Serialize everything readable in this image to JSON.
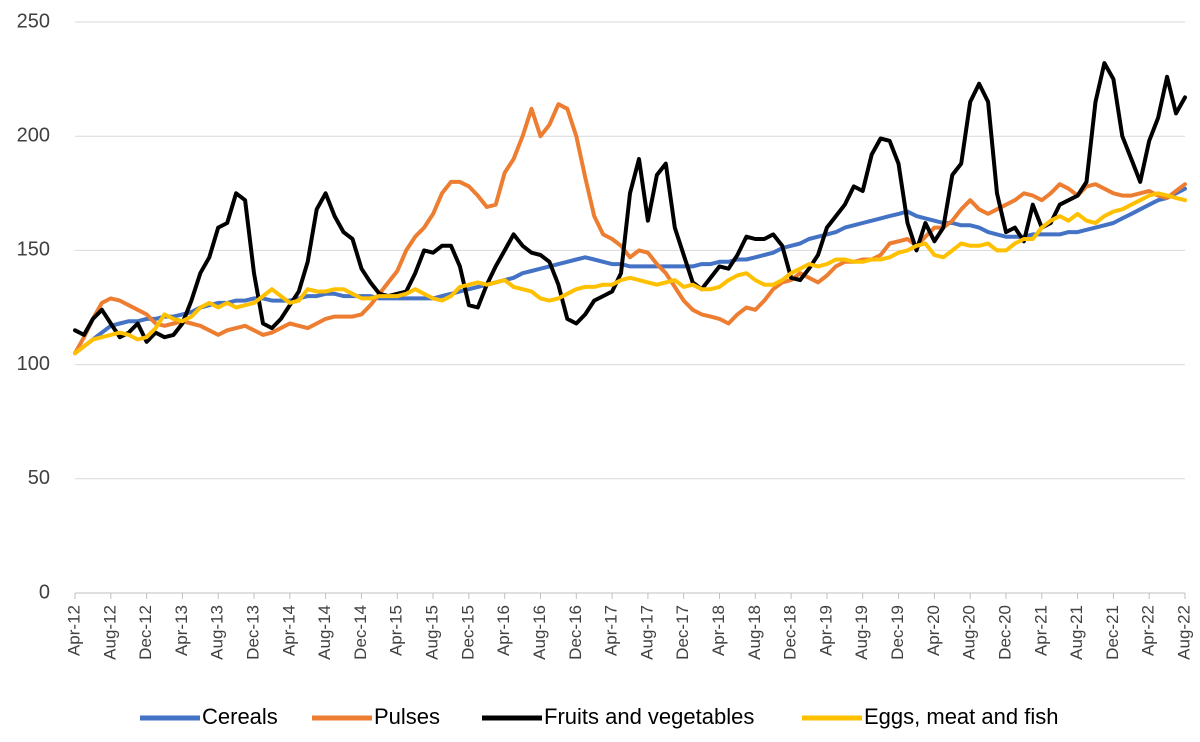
{
  "chart_data": {
    "type": "line",
    "categories": [
      "Apr-12",
      null,
      null,
      null,
      "Aug-12",
      null,
      null,
      null,
      "Dec-12",
      null,
      null,
      null,
      "Apr-13",
      null,
      null,
      null,
      "Aug-13",
      null,
      null,
      null,
      "Dec-13",
      null,
      null,
      null,
      "Apr-14",
      null,
      null,
      null,
      "Aug-14",
      null,
      null,
      null,
      "Dec-14",
      null,
      null,
      null,
      "Apr-15",
      null,
      null,
      null,
      "Aug-15",
      null,
      null,
      null,
      "Dec-15",
      null,
      null,
      null,
      "Apr-16",
      null,
      null,
      null,
      "Aug-16",
      null,
      null,
      null,
      "Dec-16",
      null,
      null,
      null,
      "Apr-17",
      null,
      null,
      null,
      "Aug-17",
      null,
      null,
      null,
      "Dec-17",
      null,
      null,
      null,
      "Apr-18",
      null,
      null,
      null,
      "Aug-18",
      null,
      null,
      null,
      "Dec-18",
      null,
      null,
      null,
      "Apr-19",
      null,
      null,
      null,
      "Aug-19",
      null,
      null,
      null,
      "Dec-19",
      null,
      null,
      null,
      "Apr-20",
      null,
      null,
      null,
      "Aug-20",
      null,
      null,
      null,
      "Dec-20",
      null,
      null,
      null,
      "Apr-21",
      null,
      null,
      null,
      "Aug-21",
      null,
      null,
      null,
      "Dec-21",
      null,
      null,
      null,
      "Apr-22",
      null,
      null,
      null,
      "Aug-22"
    ],
    "series": [
      {
        "name": "Cereals",
        "color": "#4472c4",
        "values": [
          105,
          108,
          111,
          114,
          117,
          118,
          119,
          119,
          120,
          120,
          121,
          121,
          122,
          123,
          125,
          126,
          127,
          127,
          128,
          128,
          129,
          129,
          128,
          128,
          128,
          129,
          130,
          130,
          131,
          131,
          130,
          130,
          130,
          130,
          129,
          129,
          129,
          129,
          129,
          129,
          129,
          130,
          131,
          132,
          133,
          134,
          135,
          136,
          137,
          138,
          140,
          141,
          142,
          143,
          144,
          145,
          146,
          147,
          146,
          145,
          144,
          144,
          143,
          143,
          143,
          143,
          143,
          143,
          143,
          143,
          144,
          144,
          145,
          145,
          146,
          146,
          147,
          148,
          149,
          151,
          152,
          153,
          155,
          156,
          157,
          158,
          160,
          161,
          162,
          163,
          164,
          165,
          166,
          167,
          165,
          164,
          163,
          162,
          162,
          161,
          161,
          160,
          158,
          157,
          156,
          156,
          156,
          157,
          157,
          157,
          157,
          158,
          158,
          159,
          160,
          161,
          162,
          164,
          166,
          168,
          170,
          172,
          173,
          175,
          177
        ]
      },
      {
        "name": "Pulses",
        "color": "#ed7d31",
        "values": [
          105,
          112,
          120,
          127,
          129,
          128,
          126,
          124,
          122,
          118,
          117,
          118,
          119,
          118,
          117,
          115,
          113,
          115,
          116,
          117,
          115,
          113,
          114,
          116,
          118,
          117,
          116,
          118,
          120,
          121,
          121,
          121,
          122,
          126,
          131,
          136,
          141,
          150,
          156,
          160,
          166,
          175,
          180,
          180,
          178,
          174,
          169,
          170,
          184,
          190,
          200,
          212,
          200,
          205,
          214,
          212,
          200,
          182,
          165,
          157,
          155,
          152,
          147,
          150,
          149,
          144,
          140,
          134,
          128,
          124,
          122,
          121,
          120,
          118,
          122,
          125,
          124,
          128,
          133,
          136,
          137,
          140,
          138,
          136,
          139,
          143,
          145,
          145,
          146,
          146,
          148,
          153,
          154,
          155,
          152,
          156,
          160,
          160,
          163,
          168,
          172,
          168,
          166,
          168,
          170,
          172,
          175,
          174,
          172,
          175,
          179,
          177,
          174,
          178,
          179,
          177,
          175,
          174,
          174,
          175,
          176,
          174,
          173,
          176,
          179
        ]
      },
      {
        "name": "Fruits and vegetables",
        "color": "#000000",
        "values": [
          115,
          113,
          120,
          124,
          118,
          112,
          114,
          118,
          110,
          114,
          112,
          113,
          118,
          128,
          140,
          147,
          160,
          162,
          175,
          172,
          140,
          118,
          116,
          120,
          126,
          132,
          145,
          168,
          175,
          165,
          158,
          155,
          142,
          136,
          131,
          130,
          131,
          132,
          140,
          150,
          149,
          152,
          152,
          143,
          126,
          125,
          135,
          143,
          150,
          157,
          152,
          149,
          148,
          145,
          135,
          120,
          118,
          122,
          128,
          130,
          132,
          140,
          175,
          190,
          163,
          183,
          188,
          160,
          148,
          136,
          133,
          138,
          143,
          142,
          148,
          156,
          155,
          155,
          157,
          152,
          138,
          137,
          142,
          148,
          160,
          165,
          170,
          178,
          176,
          192,
          199,
          198,
          188,
          162,
          150,
          162,
          154,
          160,
          183,
          188,
          215,
          223,
          215,
          175,
          158,
          160,
          154,
          170,
          160,
          162,
          170,
          172,
          174,
          180,
          215,
          232,
          225,
          200,
          190,
          180,
          198,
          208,
          226,
          210,
          217
        ]
      },
      {
        "name": "Eggs, meat and fish",
        "color": "#ffc000",
        "values": [
          105,
          108,
          111,
          112,
          113,
          114,
          113,
          111,
          112,
          116,
          122,
          120,
          119,
          121,
          125,
          127,
          125,
          127,
          125,
          126,
          127,
          130,
          133,
          130,
          127,
          128,
          133,
          132,
          132,
          133,
          133,
          131,
          129,
          129,
          130,
          130,
          130,
          131,
          133,
          131,
          129,
          128,
          130,
          134,
          135,
          136,
          135,
          136,
          137,
          134,
          133,
          132,
          129,
          128,
          129,
          131,
          133,
          134,
          134,
          135,
          135,
          137,
          138,
          137,
          136,
          135,
          136,
          137,
          134,
          135,
          133,
          133,
          134,
          137,
          139,
          140,
          137,
          135,
          135,
          137,
          140,
          142,
          144,
          143,
          144,
          146,
          146,
          145,
          145,
          146,
          146,
          147,
          149,
          150,
          152,
          153,
          148,
          147,
          150,
          153,
          152,
          152,
          153,
          150,
          150,
          153,
          155,
          155,
          160,
          163,
          165,
          163,
          166,
          163,
          162,
          165,
          167,
          168,
          170,
          172,
          174,
          175,
          174,
          173,
          172
        ]
      }
    ],
    "ylim": [
      0,
      250
    ],
    "yticks": [
      0,
      50,
      100,
      150,
      200,
      250
    ],
    "grid": true,
    "legend": "bottom"
  }
}
